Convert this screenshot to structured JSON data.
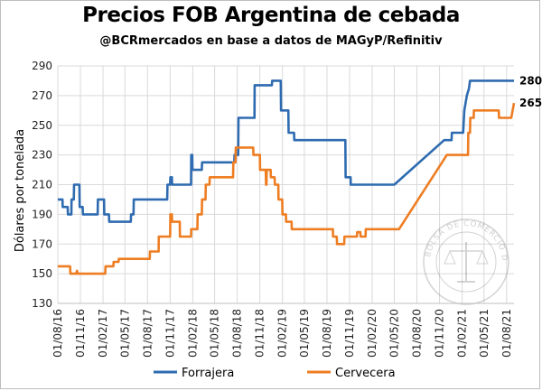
{
  "chart_data": {
    "type": "line",
    "title": "Precios FOB Argentina de cebada",
    "subtitle": "@BCRmercados en base a datos de MAGyP/Refinitiv",
    "ylabel": "Dólares por tonelada",
    "xlabel": "",
    "ylim": [
      130,
      290
    ],
    "yticks": [
      130,
      150,
      170,
      190,
      210,
      230,
      250,
      270,
      290
    ],
    "x_tick_labels": [
      "01/08/16",
      "01/11/16",
      "01/02/17",
      "01/05/17",
      "01/08/17",
      "01/11/17",
      "01/02/18",
      "01/05/18",
      "01/08/18",
      "01/11/18",
      "01/02/19",
      "01/05/19",
      "01/08/19",
      "01/11/19",
      "01/02/20",
      "01/05/20",
      "01/08/20",
      "01/11/20",
      "01/02/21",
      "01/05/21",
      "01/08/21"
    ],
    "grid": true,
    "legend_position": "bottom",
    "series": [
      {
        "name": "Forrajera",
        "color": "#2e6bb0",
        "end_label": "280",
        "points": [
          [
            "2016-08-01",
            200
          ],
          [
            "2016-08-20",
            200
          ],
          [
            "2016-08-21",
            195
          ],
          [
            "2016-09-10",
            195
          ],
          [
            "2016-09-11",
            190
          ],
          [
            "2016-09-25",
            190
          ],
          [
            "2016-09-26",
            200
          ],
          [
            "2016-10-05",
            200
          ],
          [
            "2016-10-06",
            210
          ],
          [
            "2016-10-28",
            210
          ],
          [
            "2016-10-29",
            195
          ],
          [
            "2016-11-10",
            195
          ],
          [
            "2016-11-11",
            190
          ],
          [
            "2017-01-10",
            190
          ],
          [
            "2017-01-11",
            200
          ],
          [
            "2017-02-05",
            200
          ],
          [
            "2017-02-06",
            190
          ],
          [
            "2017-02-25",
            190
          ],
          [
            "2017-02-26",
            185
          ],
          [
            "2017-05-25",
            185
          ],
          [
            "2017-05-26",
            190
          ],
          [
            "2017-06-05",
            190
          ],
          [
            "2017-06-06",
            200
          ],
          [
            "2017-10-20",
            200
          ],
          [
            "2017-10-21",
            210
          ],
          [
            "2017-11-01",
            210
          ],
          [
            "2017-11-02",
            215
          ],
          [
            "2017-11-08",
            215
          ],
          [
            "2017-11-09",
            210
          ],
          [
            "2018-01-25",
            210
          ],
          [
            "2018-01-26",
            230
          ],
          [
            "2018-01-30",
            230
          ],
          [
            "2018-01-31",
            220
          ],
          [
            "2018-03-10",
            220
          ],
          [
            "2018-03-11",
            225
          ],
          [
            "2018-07-20",
            225
          ],
          [
            "2018-07-21",
            230
          ],
          [
            "2018-08-05",
            230
          ],
          [
            "2018-08-06",
            255
          ],
          [
            "2018-10-10",
            255
          ],
          [
            "2018-10-11",
            277
          ],
          [
            "2018-12-20",
            277
          ],
          [
            "2018-12-21",
            280
          ],
          [
            "2019-01-25",
            280
          ],
          [
            "2019-01-26",
            260
          ],
          [
            "2019-02-25",
            260
          ],
          [
            "2019-02-26",
            245
          ],
          [
            "2019-03-20",
            245
          ],
          [
            "2019-03-21",
            240
          ],
          [
            "2019-10-15",
            240
          ],
          [
            "2019-10-16",
            215
          ],
          [
            "2019-11-05",
            215
          ],
          [
            "2019-11-06",
            210
          ],
          [
            "2020-05-01",
            210
          ],
          [
            "2020-11-20",
            240
          ],
          [
            "2020-12-20",
            240
          ],
          [
            "2020-12-21",
            245
          ],
          [
            "2021-02-05",
            245
          ],
          [
            "2021-02-10",
            260
          ],
          [
            "2021-02-20",
            270
          ],
          [
            "2021-03-01",
            275
          ],
          [
            "2021-03-05",
            280
          ],
          [
            "2021-08-31",
            280
          ]
        ]
      },
      {
        "name": "Cervecera",
        "color": "#ee7d22",
        "end_label": "265",
        "points": [
          [
            "2016-08-01",
            155
          ],
          [
            "2016-09-20",
            155
          ],
          [
            "2016-09-21",
            150
          ],
          [
            "2016-10-15",
            150
          ],
          [
            "2016-10-18",
            152
          ],
          [
            "2016-10-21",
            150
          ],
          [
            "2017-02-10",
            150
          ],
          [
            "2017-02-11",
            155
          ],
          [
            "2017-03-15",
            155
          ],
          [
            "2017-03-16",
            158
          ],
          [
            "2017-04-05",
            158
          ],
          [
            "2017-04-06",
            160
          ],
          [
            "2017-08-10",
            160
          ],
          [
            "2017-08-11",
            165
          ],
          [
            "2017-09-15",
            165
          ],
          [
            "2017-09-16",
            175
          ],
          [
            "2017-11-01",
            175
          ],
          [
            "2017-11-02",
            190
          ],
          [
            "2017-11-08",
            190
          ],
          [
            "2017-11-09",
            185
          ],
          [
            "2017-12-10",
            185
          ],
          [
            "2017-12-11",
            175
          ],
          [
            "2018-01-25",
            175
          ],
          [
            "2018-01-26",
            180
          ],
          [
            "2018-02-20",
            180
          ],
          [
            "2018-02-21",
            190
          ],
          [
            "2018-03-10",
            190
          ],
          [
            "2018-03-11",
            200
          ],
          [
            "2018-03-25",
            200
          ],
          [
            "2018-03-26",
            210
          ],
          [
            "2018-04-10",
            210
          ],
          [
            "2018-04-11",
            215
          ],
          [
            "2018-07-15",
            215
          ],
          [
            "2018-07-16",
            225
          ],
          [
            "2018-07-25",
            225
          ],
          [
            "2018-07-26",
            235
          ],
          [
            "2018-10-05",
            235
          ],
          [
            "2018-10-06",
            230
          ],
          [
            "2018-11-01",
            230
          ],
          [
            "2018-11-02",
            220
          ],
          [
            "2018-11-25",
            220
          ],
          [
            "2018-11-26",
            210
          ],
          [
            "2018-11-28",
            210
          ],
          [
            "2018-11-29",
            220
          ],
          [
            "2018-12-15",
            220
          ],
          [
            "2018-12-16",
            215
          ],
          [
            "2018-12-31",
            215
          ],
          [
            "2019-01-01",
            210
          ],
          [
            "2019-01-15",
            210
          ],
          [
            "2019-01-16",
            200
          ],
          [
            "2019-01-31",
            200
          ],
          [
            "2019-02-01",
            190
          ],
          [
            "2019-02-15",
            190
          ],
          [
            "2019-02-16",
            185
          ],
          [
            "2019-03-10",
            185
          ],
          [
            "2019-03-11",
            180
          ],
          [
            "2019-08-25",
            180
          ],
          [
            "2019-08-26",
            175
          ],
          [
            "2019-09-10",
            175
          ],
          [
            "2019-09-11",
            170
          ],
          [
            "2019-10-10",
            170
          ],
          [
            "2019-10-11",
            175
          ],
          [
            "2019-12-01",
            175
          ],
          [
            "2019-12-02",
            178
          ],
          [
            "2019-12-15",
            178
          ],
          [
            "2019-12-16",
            175
          ],
          [
            "2020-01-05",
            175
          ],
          [
            "2020-01-06",
            180
          ],
          [
            "2020-05-20",
            180
          ],
          [
            "2020-12-01",
            230
          ],
          [
            "2021-02-25",
            230
          ],
          [
            "2021-02-26",
            245
          ],
          [
            "2021-03-05",
            245
          ],
          [
            "2021-03-06",
            255
          ],
          [
            "2021-03-20",
            255
          ],
          [
            "2021-03-21",
            260
          ],
          [
            "2021-06-30",
            260
          ],
          [
            "2021-07-01",
            255
          ],
          [
            "2021-08-20",
            255
          ],
          [
            "2021-08-31",
            265
          ]
        ]
      }
    ]
  }
}
